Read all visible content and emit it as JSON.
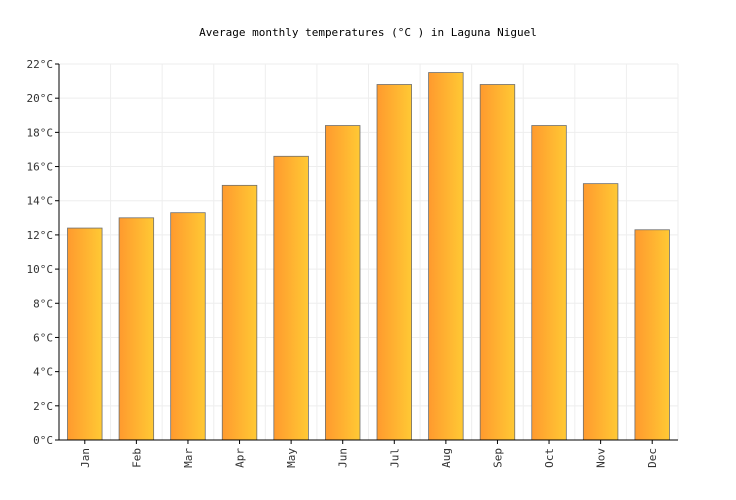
{
  "chart_data": {
    "type": "bar",
    "title": "Average monthly temperatures (°C ) in Laguna Niguel",
    "xlabel": "",
    "ylabel": "",
    "categories": [
      "Jan",
      "Feb",
      "Mar",
      "Apr",
      "May",
      "Jun",
      "Jul",
      "Aug",
      "Sep",
      "Oct",
      "Nov",
      "Dec"
    ],
    "values": [
      12.4,
      13.0,
      13.3,
      14.9,
      16.6,
      18.4,
      20.8,
      21.5,
      20.8,
      18.4,
      15.0,
      12.3
    ],
    "ylim": [
      0,
      22
    ],
    "yticks": [
      0,
      2,
      4,
      6,
      8,
      10,
      12,
      14,
      16,
      18,
      20,
      22
    ],
    "ytick_labels": [
      "0°C",
      "2°C",
      "4°C",
      "6°C",
      "8°C",
      "10°C",
      "12°C",
      "14°C",
      "16°C",
      "18°C",
      "20°C",
      "22°C"
    ],
    "grid": true,
    "legend": "none",
    "colors": {
      "bar_left": "#ff9a2e",
      "bar_right": "#ffc934",
      "bar_stroke": "#6e6e6e",
      "grid": "#eeeeee",
      "axis": "#000000"
    }
  }
}
